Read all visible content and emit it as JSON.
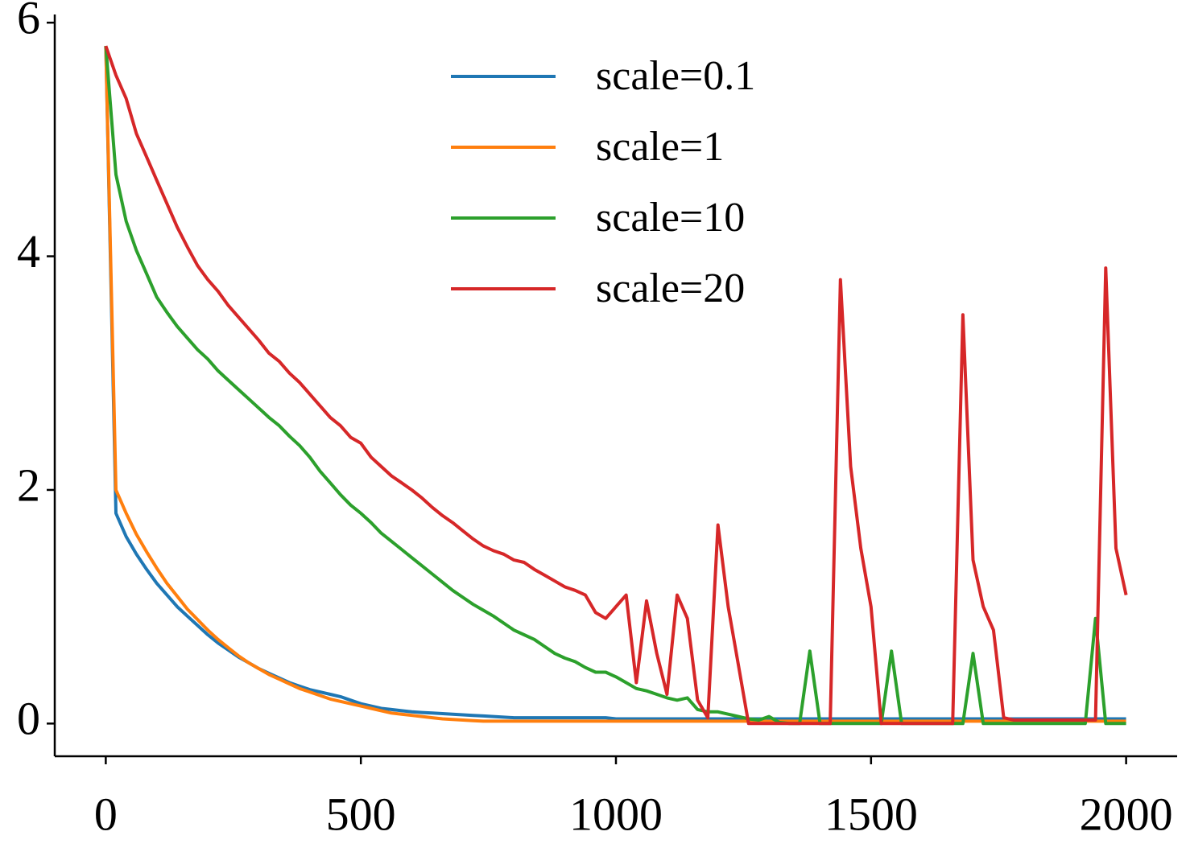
{
  "chart_data": {
    "type": "line",
    "x": [
      0,
      20,
      40,
      60,
      80,
      100,
      120,
      140,
      160,
      180,
      200,
      220,
      240,
      260,
      280,
      300,
      320,
      340,
      360,
      380,
      400,
      420,
      440,
      460,
      480,
      500,
      520,
      540,
      560,
      580,
      600,
      620,
      640,
      660,
      680,
      700,
      720,
      740,
      760,
      780,
      800,
      820,
      840,
      860,
      880,
      900,
      920,
      940,
      960,
      980,
      1000,
      1020,
      1040,
      1060,
      1080,
      1100,
      1120,
      1140,
      1160,
      1180,
      1200,
      1220,
      1240,
      1260,
      1280,
      1300,
      1320,
      1340,
      1360,
      1380,
      1400,
      1420,
      1440,
      1460,
      1480,
      1500,
      1520,
      1540,
      1560,
      1580,
      1600,
      1620,
      1640,
      1660,
      1680,
      1700,
      1720,
      1740,
      1760,
      1780,
      1800,
      1820,
      1840,
      1860,
      1880,
      1900,
      1920,
      1940,
      1960,
      1980,
      2000
    ],
    "series": [
      {
        "name": "scale=0.1",
        "color": "#1f77b4",
        "values": [
          5.8,
          1.8,
          1.6,
          1.45,
          1.32,
          1.2,
          1.1,
          1.0,
          0.92,
          0.84,
          0.76,
          0.69,
          0.63,
          0.57,
          0.52,
          0.47,
          0.43,
          0.39,
          0.35,
          0.32,
          0.29,
          0.27,
          0.25,
          0.23,
          0.2,
          0.17,
          0.15,
          0.13,
          0.12,
          0.11,
          0.1,
          0.095,
          0.09,
          0.085,
          0.08,
          0.075,
          0.07,
          0.065,
          0.06,
          0.055,
          0.05,
          0.05,
          0.05,
          0.05,
          0.05,
          0.05,
          0.05,
          0.05,
          0.05,
          0.05,
          0.04,
          0.04,
          0.04,
          0.04,
          0.04,
          0.04,
          0.04,
          0.04,
          0.04,
          0.04,
          0.04,
          0.04,
          0.04,
          0.04,
          0.04,
          0.04,
          0.04,
          0.04,
          0.04,
          0.04,
          0.04,
          0.04,
          0.04,
          0.04,
          0.04,
          0.04,
          0.04,
          0.04,
          0.04,
          0.04,
          0.04,
          0.04,
          0.04,
          0.04,
          0.04,
          0.04,
          0.04,
          0.04,
          0.04,
          0.04,
          0.04,
          0.04,
          0.04,
          0.04,
          0.04,
          0.04,
          0.04,
          0.04,
          0.04,
          0.04,
          0.04
        ]
      },
      {
        "name": "scale=1",
        "color": "#ff7f0e",
        "values": [
          5.8,
          2.0,
          1.8,
          1.62,
          1.47,
          1.33,
          1.2,
          1.09,
          0.98,
          0.89,
          0.8,
          0.72,
          0.65,
          0.58,
          0.52,
          0.47,
          0.42,
          0.38,
          0.34,
          0.3,
          0.27,
          0.24,
          0.21,
          0.19,
          0.17,
          0.15,
          0.13,
          0.11,
          0.09,
          0.08,
          0.07,
          0.06,
          0.05,
          0.04,
          0.035,
          0.03,
          0.025,
          0.02,
          0.02,
          0.02,
          0.02,
          0.02,
          0.02,
          0.02,
          0.02,
          0.02,
          0.02,
          0.02,
          0.02,
          0.02,
          0.02,
          0.02,
          0.02,
          0.02,
          0.02,
          0.02,
          0.02,
          0.02,
          0.02,
          0.02,
          0.02,
          0.02,
          0.02,
          0.02,
          0.02,
          0.02,
          0.02,
          0.02,
          0.02,
          0.02,
          0.02,
          0.02,
          0.02,
          0.02,
          0.02,
          0.02,
          0.02,
          0.02,
          0.02,
          0.02,
          0.02,
          0.02,
          0.02,
          0.02,
          0.02,
          0.02,
          0.02,
          0.02,
          0.02,
          0.02,
          0.02,
          0.02,
          0.02,
          0.02,
          0.02,
          0.02,
          0.02,
          0.02,
          0.02,
          0.02,
          0.02
        ]
      },
      {
        "name": "scale=10",
        "color": "#2ca02c",
        "values": [
          5.8,
          4.7,
          4.3,
          4.05,
          3.85,
          3.65,
          3.52,
          3.4,
          3.3,
          3.2,
          3.12,
          3.02,
          2.94,
          2.86,
          2.78,
          2.7,
          2.62,
          2.55,
          2.46,
          2.38,
          2.28,
          2.16,
          2.06,
          1.96,
          1.87,
          1.8,
          1.72,
          1.63,
          1.56,
          1.49,
          1.42,
          1.35,
          1.28,
          1.21,
          1.14,
          1.08,
          1.02,
          0.97,
          0.92,
          0.86,
          0.8,
          0.76,
          0.72,
          0.66,
          0.6,
          0.56,
          0.53,
          0.48,
          0.44,
          0.44,
          0.4,
          0.35,
          0.3,
          0.28,
          0.25,
          0.22,
          0.2,
          0.22,
          0.12,
          0.1,
          0.1,
          0.08,
          0.06,
          0.04,
          0.03,
          0.06,
          0.01,
          0,
          0,
          0.62,
          0,
          0,
          0,
          0,
          0,
          0,
          0,
          0.62,
          0,
          0,
          0,
          0,
          0,
          0,
          0,
          0.6,
          0,
          0,
          0,
          0,
          0,
          0,
          0,
          0,
          0,
          0,
          0,
          0.9,
          0,
          0,
          0
        ]
      },
      {
        "name": "scale=20",
        "color": "#d62728",
        "values": [
          5.8,
          5.55,
          5.35,
          5.05,
          4.85,
          4.65,
          4.45,
          4.25,
          4.08,
          3.92,
          3.8,
          3.7,
          3.58,
          3.48,
          3.38,
          3.28,
          3.17,
          3.1,
          3.0,
          2.92,
          2.82,
          2.72,
          2.62,
          2.55,
          2.45,
          2.4,
          2.28,
          2.2,
          2.12,
          2.06,
          2.0,
          1.93,
          1.85,
          1.78,
          1.72,
          1.65,
          1.58,
          1.52,
          1.48,
          1.45,
          1.4,
          1.38,
          1.32,
          1.27,
          1.22,
          1.17,
          1.14,
          1.1,
          0.95,
          0.9,
          1.0,
          1.1,
          0.35,
          1.05,
          0.6,
          0.25,
          1.1,
          0.9,
          0.2,
          0.05,
          1.7,
          1.0,
          0.5,
          0,
          0,
          0,
          0,
          0,
          0,
          0,
          0,
          0,
          3.8,
          2.2,
          1.5,
          1.0,
          0,
          0,
          0,
          0,
          0,
          0,
          0,
          0,
          3.5,
          1.4,
          1.0,
          0.8,
          0.05,
          0.03,
          0.03,
          0.03,
          0.03,
          0.03,
          0.03,
          0.03,
          0.03,
          0.03,
          3.9,
          1.5,
          1.1
        ]
      }
    ],
    "xlim": [
      -100,
      2100
    ],
    "ylim": [
      -0.28,
      6.07
    ],
    "xticks": [
      0,
      500,
      1000,
      1500,
      2000
    ],
    "yticks": [
      0,
      2,
      4,
      6
    ],
    "legend": "upper center"
  }
}
